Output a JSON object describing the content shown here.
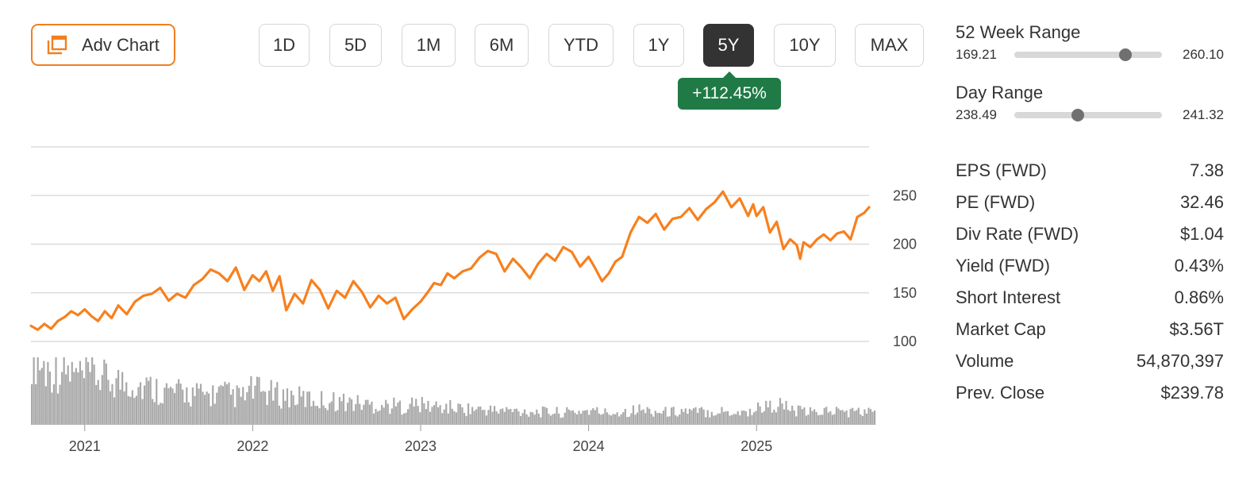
{
  "toolbar": {
    "adv_chart_label": "Adv Chart",
    "ranges": [
      "1D",
      "5D",
      "1M",
      "6M",
      "YTD",
      "1Y",
      "5Y",
      "10Y",
      "MAX"
    ],
    "active_range": "5Y",
    "change_badge": "+112.45%"
  },
  "colors": {
    "accent": "#f07f20",
    "price_line": "#f7801e",
    "volume_bars": "#a9a9a9",
    "positive_badge": "#1f7a46",
    "active_button": "#333333"
  },
  "panel": {
    "week52": {
      "title": "52 Week Range",
      "low": "169.21",
      "high": "260.10",
      "position": 0.75
    },
    "day": {
      "title": "Day Range",
      "low": "238.49",
      "high": "241.32",
      "position": 0.43
    },
    "stats": [
      {
        "label": "EPS (FWD)",
        "value": "7.38"
      },
      {
        "label": "PE (FWD)",
        "value": "32.46"
      },
      {
        "label": "Div Rate (FWD)",
        "value": "$1.04"
      },
      {
        "label": "Yield (FWD)",
        "value": "0.43%"
      },
      {
        "label": "Short Interest",
        "value": "0.86%"
      },
      {
        "label": "Market Cap",
        "value": "$3.56T"
      },
      {
        "label": "Volume",
        "value": "54,870,397"
      },
      {
        "label": "Prev. Close",
        "value": "$239.78"
      }
    ]
  },
  "chart_data": {
    "type": "line",
    "x_tick_labels": [
      "2021",
      "2022",
      "2023",
      "2024",
      "2025"
    ],
    "x_tick_positions": [
      2021.0,
      2022.0,
      2023.0,
      2024.0,
      2025.0
    ],
    "y_tick_labels": [
      "250",
      "200",
      "150",
      "100"
    ],
    "y_ticks": [
      250,
      200,
      150,
      100
    ],
    "xlim": [
      2020.68,
      2025.67
    ],
    "ylim": [
      100,
      300
    ],
    "grid": true,
    "series": [
      {
        "x": [
          2020.68,
          2020.72,
          2020.76,
          2020.8,
          2020.84,
          2020.88,
          2020.92,
          2020.96,
          2021.0,
          2021.04,
          2021.08,
          2021.12,
          2021.16,
          2021.2,
          2021.25,
          2021.3,
          2021.35,
          2021.4,
          2021.45,
          2021.5,
          2021.55,
          2021.6,
          2021.65,
          2021.7,
          2021.75,
          2021.8,
          2021.85,
          2021.9,
          2021.95,
          2022.0,
          2022.04,
          2022.08,
          2022.12,
          2022.16,
          2022.2,
          2022.25,
          2022.3,
          2022.35,
          2022.4,
          2022.45,
          2022.5,
          2022.55,
          2022.6,
          2022.65,
          2022.7,
          2022.75,
          2022.8,
          2022.85,
          2022.9,
          2022.95,
          2023.0,
          2023.04,
          2023.08,
          2023.12,
          2023.16,
          2023.2,
          2023.25,
          2023.3,
          2023.35,
          2023.4,
          2023.45,
          2023.5,
          2023.55,
          2023.6,
          2023.65,
          2023.7,
          2023.75,
          2023.8,
          2023.85,
          2023.9,
          2023.95,
          2024.0,
          2024.04,
          2024.08,
          2024.12,
          2024.16,
          2024.2,
          2024.25,
          2024.3,
          2024.35,
          2024.4,
          2024.45,
          2024.5,
          2024.55,
          2024.6,
          2024.65,
          2024.7,
          2024.75,
          2024.8,
          2024.85,
          2024.9,
          2024.95,
          2024.98,
          2025.0,
          2025.04,
          2025.08,
          2025.12,
          2025.16,
          2025.2,
          2025.24,
          2025.26,
          2025.28,
          2025.32,
          2025.36,
          2025.4,
          2025.44,
          2025.48,
          2025.52,
          2025.56,
          2025.6,
          2025.64,
          2025.67
        ],
        "y": [
          116,
          112,
          118,
          113,
          121,
          125,
          131,
          127,
          133,
          126,
          121,
          131,
          124,
          137,
          128,
          141,
          147,
          149,
          155,
          142,
          149,
          145,
          158,
          164,
          174,
          170,
          162,
          176,
          153,
          168,
          162,
          172,
          152,
          167,
          132,
          149,
          139,
          163,
          153,
          134,
          152,
          145,
          162,
          151,
          135,
          147,
          139,
          145,
          123,
          133,
          141,
          150,
          160,
          158,
          170,
          165,
          172,
          175,
          186,
          193,
          190,
          172,
          185,
          176,
          165,
          180,
          190,
          183,
          197,
          192,
          177,
          187,
          175,
          162,
          170,
          182,
          187,
          212,
          228,
          222,
          231,
          215,
          226,
          228,
          237,
          225,
          236,
          243,
          254,
          238,
          247,
          229,
          241,
          229,
          238,
          212,
          223,
          195,
          205,
          199,
          185,
          202,
          197,
          205,
          210,
          204,
          211,
          213,
          205,
          228,
          232,
          238
        ],
        "volume": [
          93,
          78,
          68,
          72,
          70,
          65,
          62,
          58,
          64,
          60,
          55,
          57,
          52,
          54,
          50,
          48,
          46,
          44,
          42,
          40,
          41,
          39,
          38,
          37,
          39,
          40,
          38,
          36,
          35,
          45,
          42,
          40,
          38,
          37,
          36,
          34,
          33,
          32,
          31,
          30,
          30,
          29,
          28,
          27,
          26,
          25,
          25,
          24,
          24,
          23,
          26,
          25,
          24,
          23,
          22,
          22,
          21,
          20,
          20,
          19,
          19,
          18,
          18,
          18,
          17,
          17,
          17,
          16,
          16,
          16,
          15,
          16,
          17,
          18,
          17,
          16,
          15,
          16,
          17,
          18,
          19,
          18,
          17,
          16,
          16,
          17,
          18,
          16,
          17,
          16,
          18,
          17,
          16,
          16,
          16,
          17,
          24,
          22,
          26,
          24,
          18,
          17,
          16,
          15,
          17,
          18,
          17,
          17,
          16,
          17,
          16,
          16
        ]
      }
    ]
  }
}
